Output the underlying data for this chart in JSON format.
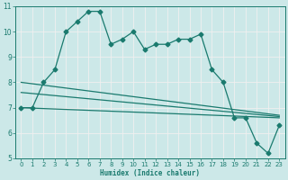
{
  "xlabel": "Humidex (Indice chaleur)",
  "ylabel": "",
  "bg_color": "#cce8e8",
  "grid_color": "#f0f0f0",
  "line_color": "#1a7a6e",
  "xlim": [
    -0.5,
    23.5
  ],
  "ylim": [
    5,
    11
  ],
  "xticks": [
    0,
    1,
    2,
    3,
    4,
    5,
    6,
    7,
    8,
    9,
    10,
    11,
    12,
    13,
    14,
    15,
    16,
    17,
    18,
    19,
    20,
    21,
    22,
    23
  ],
  "yticks": [
    5,
    6,
    7,
    8,
    9,
    10,
    11
  ],
  "series1_x": [
    0,
    1,
    2,
    3,
    4,
    5,
    6,
    7,
    8,
    9,
    10,
    11,
    12,
    13,
    14,
    15,
    16,
    17,
    18,
    19,
    20,
    21,
    22,
    23
  ],
  "series1_y": [
    7.0,
    7.0,
    8.0,
    8.5,
    10.0,
    10.4,
    10.8,
    10.8,
    9.5,
    9.7,
    10.0,
    9.3,
    9.5,
    9.5,
    9.7,
    9.7,
    9.9,
    8.5,
    8.0,
    6.6,
    6.6,
    5.6,
    5.2,
    6.3
  ],
  "series2_x": [
    0,
    23
  ],
  "series2_y": [
    7.0,
    6.6
  ],
  "series3_x": [
    0,
    23
  ],
  "series3_y": [
    7.6,
    6.65
  ],
  "series4_x": [
    0,
    23
  ],
  "series4_y": [
    8.0,
    6.7
  ],
  "markersize": 2.5,
  "linewidth": 0.9,
  "xlabel_fontsize": 5.5,
  "tick_fontsize": 5.0
}
